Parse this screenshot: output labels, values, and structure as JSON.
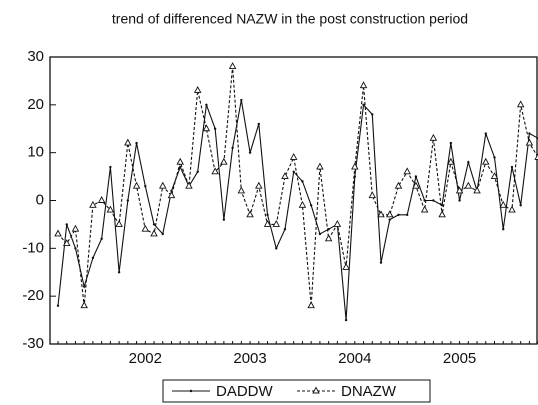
{
  "chart_data": {
    "type": "line",
    "title": "trend of differenced NAZW in the post construction period",
    "categories": [
      null,
      null,
      null,
      null,
      null,
      null,
      null,
      null,
      null,
      null,
      "2002",
      null,
      null,
      null,
      null,
      null,
      null,
      null,
      null,
      null,
      null,
      null,
      "2003",
      null,
      null,
      null,
      null,
      null,
      null,
      null,
      null,
      null,
      null,
      null,
      "2004",
      null,
      null,
      null,
      null,
      null,
      null,
      null,
      null,
      null,
      null,
      null,
      "2005",
      null,
      null,
      null,
      null,
      null,
      null,
      null,
      null,
      null
    ],
    "series": [
      {
        "name": "DADDW",
        "color": "#111111",
        "dashed": false,
        "marker": "dot",
        "values": [
          -22,
          -5,
          -10,
          -18,
          -12,
          -8,
          7,
          -15,
          0,
          12,
          3,
          -5,
          -7,
          2,
          7,
          3,
          6,
          20,
          15,
          -4,
          11,
          21,
          10,
          16,
          -3,
          -10,
          -6,
          6,
          4,
          -1,
          -7,
          -6,
          -5,
          -25,
          5,
          20,
          18,
          -13,
          -4,
          -3,
          -3,
          5,
          0,
          0,
          -1,
          12,
          0,
          8,
          2,
          14,
          9,
          -6,
          7,
          -1,
          14,
          13
        ]
      },
      {
        "name": "DNAZW",
        "color": "#111111",
        "dashed": true,
        "marker": "triangle",
        "values": [
          -7,
          -9,
          -6,
          -22,
          -1,
          0,
          -2,
          -5,
          12,
          3,
          -6,
          -7,
          3,
          1,
          8,
          3,
          23,
          15,
          6,
          8,
          28,
          2,
          -3,
          3,
          -5,
          -5,
          5,
          9,
          -1,
          -22,
          7,
          -8,
          -5,
          -14,
          7,
          24,
          1,
          -3,
          -3,
          3,
          6,
          3,
          -2,
          13,
          -3,
          8,
          2,
          3,
          2,
          8,
          5,
          -1,
          -2,
          20,
          12,
          9
        ]
      }
    ],
    "ylim": [
      -30,
      30
    ],
    "yticks": [
      -30,
      -20,
      -10,
      0,
      10,
      20,
      30
    ],
    "grid": false,
    "legend": "bottom"
  }
}
